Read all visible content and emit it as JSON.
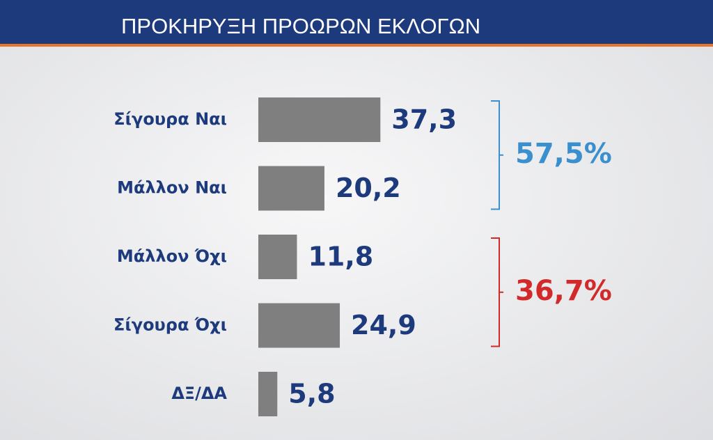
{
  "chart_data": {
    "type": "hbar",
    "title": "ΠΡΟΚΗΡΥΞΗ ΠΡΟΩΡΩΝ ΕΚΛΟΓΩΝ",
    "categories": [
      "Σίγουρα Ναι",
      "Μάλλον Ναι",
      "Μάλλον Όχι",
      "Σίγουρα Όχι",
      "ΔΞ/ΔΑ"
    ],
    "values": [
      37.3,
      20.2,
      11.8,
      24.9,
      5.8
    ],
    "value_labels": [
      "37,3",
      "20,2",
      "11,8",
      "24,9",
      "5,8"
    ],
    "color": "#7f7f7f",
    "annotations": [
      {
        "text": "57,5%",
        "color": "#3a8fcf"
      },
      {
        "text": "36,7%",
        "color": "#d22a2a"
      }
    ]
  }
}
